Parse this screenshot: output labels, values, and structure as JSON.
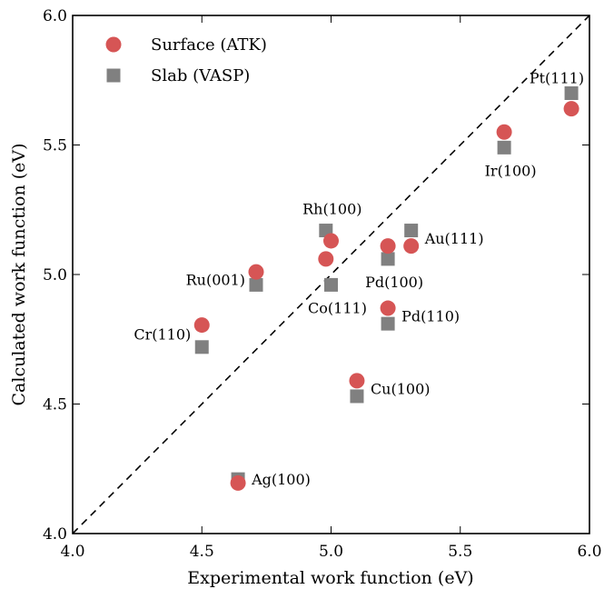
{
  "chart_data": {
    "type": "scatter",
    "xlabel": "Experimental work function (eV)",
    "ylabel": "Calculated work function (eV)",
    "xlim": [
      4.0,
      6.0
    ],
    "ylim": [
      4.0,
      6.0
    ],
    "xticks": [
      "4.0",
      "4.5",
      "5.0",
      "5.5",
      "6.0"
    ],
    "yticks": [
      "4.0",
      "4.5",
      "5.0",
      "5.5",
      "6.0"
    ],
    "grid": false,
    "legend_position": "top-left",
    "reference_line": "y = x (dashed)",
    "series": [
      {
        "name": "Surface (ATK)",
        "marker": "circle",
        "color": "#d65555",
        "points": [
          {
            "x": 4.64,
            "y": 4.195
          },
          {
            "x": 4.5,
            "y": 4.805
          },
          {
            "x": 4.71,
            "y": 5.01
          },
          {
            "x": 4.98,
            "y": 5.06
          },
          {
            "x": 5.0,
            "y": 5.13
          },
          {
            "x": 5.1,
            "y": 4.59
          },
          {
            "x": 5.22,
            "y": 5.11
          },
          {
            "x": 5.22,
            "y": 4.87
          },
          {
            "x": 5.31,
            "y": 5.11
          },
          {
            "x": 5.67,
            "y": 5.55
          },
          {
            "x": 5.93,
            "y": 5.64
          }
        ]
      },
      {
        "name": "Slab (VASP)",
        "marker": "square",
        "color": "#808080",
        "points": [
          {
            "x": 4.64,
            "y": 4.21
          },
          {
            "x": 4.5,
            "y": 4.72
          },
          {
            "x": 4.71,
            "y": 4.96
          },
          {
            "x": 4.98,
            "y": 5.17
          },
          {
            "x": 5.0,
            "y": 4.96
          },
          {
            "x": 5.1,
            "y": 4.53
          },
          {
            "x": 5.22,
            "y": 5.06
          },
          {
            "x": 5.22,
            "y": 4.81
          },
          {
            "x": 5.31,
            "y": 5.17
          },
          {
            "x": 5.67,
            "y": 5.49
          },
          {
            "x": 5.93,
            "y": 5.7
          }
        ]
      }
    ],
    "annotations": [
      {
        "text": "Ag(100)",
        "x": 4.64,
        "y": 4.21,
        "anchor": "start"
      },
      {
        "text": "Cr(110)",
        "x": 4.5,
        "y": 4.77,
        "anchor": "end"
      },
      {
        "text": "Ru(001)",
        "x": 4.71,
        "y": 4.98,
        "anchor": "end"
      },
      {
        "text": "Rh(100)",
        "x": 4.98,
        "y": 5.17,
        "anchor": "middle-above"
      },
      {
        "text": "Co(111)",
        "x": 5.0,
        "y": 4.96,
        "anchor": "middle-below"
      },
      {
        "text": "Cu(100)",
        "x": 5.1,
        "y": 4.56,
        "anchor": "start"
      },
      {
        "text": "Pd(100)",
        "x": 5.22,
        "y": 5.06,
        "anchor": "middle-below"
      },
      {
        "text": "Pd(110)",
        "x": 5.22,
        "y": 4.84,
        "anchor": "start"
      },
      {
        "text": "Au(111)",
        "x": 5.31,
        "y": 5.14,
        "anchor": "start"
      },
      {
        "text": "Ir(100)",
        "x": 5.67,
        "y": 5.49,
        "anchor": "middle-below"
      },
      {
        "text": "Pt(111)",
        "x": 5.93,
        "y": 5.7,
        "anchor": "end-above"
      }
    ]
  }
}
